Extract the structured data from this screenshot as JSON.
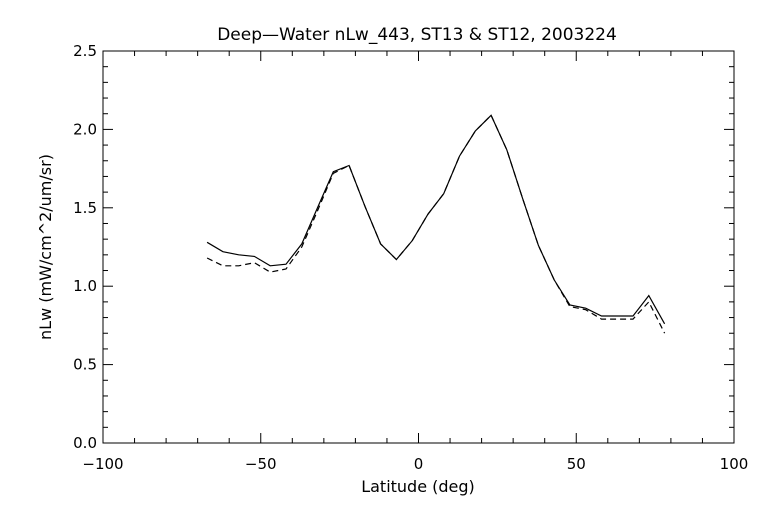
{
  "chart_data": {
    "type": "line",
    "title": "Deep—Water nLw_443, ST13 & ST12, 2003224",
    "xlabel": "Latitude (deg)",
    "ylabel": "nLw (mW/cm^2/um/sr)",
    "xlim": [
      -100,
      100
    ],
    "ylim": [
      0.0,
      2.5
    ],
    "x_ticks": [
      -100,
      -50,
      0,
      50,
      100
    ],
    "x_tick_labels": [
      "−100",
      "−50",
      "0",
      "50",
      "100"
    ],
    "y_ticks": [
      0.0,
      0.5,
      1.0,
      1.5,
      2.0,
      2.5
    ],
    "y_tick_labels": [
      "0.0",
      "0.5",
      "1.0",
      "1.5",
      "2.0",
      "2.5"
    ],
    "grid": false,
    "series": [
      {
        "style": "solid",
        "x": [
          -67,
          -62,
          -57,
          -52,
          -47,
          -42,
          -37,
          -32,
          -27,
          -22,
          -17,
          -12,
          -7,
          -2,
          3,
          8,
          13,
          18,
          23,
          28,
          33,
          38,
          43,
          48,
          53,
          58,
          63,
          68,
          73,
          78
        ],
        "y": [
          1.28,
          1.22,
          1.2,
          1.19,
          1.13,
          1.14,
          1.27,
          1.5,
          1.73,
          1.77,
          1.51,
          1.27,
          1.17,
          1.29,
          1.46,
          1.59,
          1.83,
          1.99,
          2.09,
          1.87,
          1.56,
          1.26,
          1.04,
          0.88,
          0.86,
          0.81,
          0.81,
          0.81,
          0.94,
          0.76
        ]
      },
      {
        "style": "dashed",
        "x": [
          -67,
          -62,
          -57,
          -52,
          -47,
          -42,
          -37,
          -32,
          -27,
          -22,
          -17,
          -12,
          -7,
          -2,
          3,
          8,
          13,
          18,
          23,
          28,
          33,
          38,
          43,
          48,
          53,
          58,
          63,
          68,
          73,
          78
        ],
        "y": [
          1.18,
          1.13,
          1.13,
          1.15,
          1.09,
          1.11,
          1.25,
          1.48,
          1.72,
          1.77,
          1.51,
          1.27,
          1.17,
          1.29,
          1.46,
          1.59,
          1.83,
          1.99,
          2.09,
          1.87,
          1.56,
          1.26,
          1.04,
          0.87,
          0.85,
          0.79,
          0.79,
          0.79,
          0.9,
          0.7
        ]
      }
    ]
  }
}
